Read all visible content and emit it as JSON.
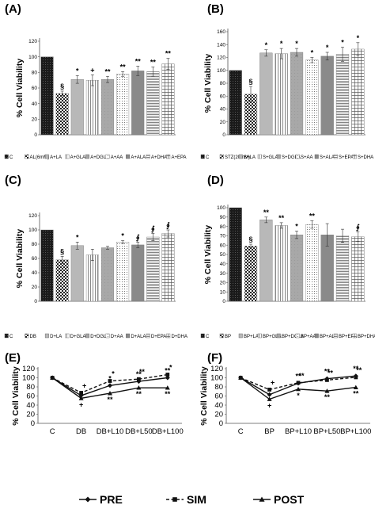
{
  "chart_data": [
    {
      "id": "A",
      "panel_label": "(A)",
      "type": "bar",
      "ylabel": "% Cell Viability",
      "ylim": [
        0,
        120
      ],
      "yticks": [
        0,
        20,
        40,
        60,
        80,
        100,
        120
      ],
      "categories": [
        "C",
        "AL(6mM)",
        "A+LA",
        "A+GLA",
        "A+DGLA",
        "A+AA",
        "A+ALA",
        "A+DHA",
        "A+EPA"
      ],
      "values": [
        100,
        53,
        71,
        70,
        71,
        78,
        82,
        81,
        91
      ],
      "errors": [
        0,
        3,
        5,
        7,
        4,
        3,
        6,
        6,
        7
      ],
      "sig": [
        "",
        "§",
        "*",
        "+",
        "**",
        "**",
        "**",
        "**",
        "**"
      ],
      "grid": false,
      "legend_position": "bottom"
    },
    {
      "id": "B",
      "panel_label": "(B)",
      "type": "bar",
      "ylabel": "% Cell Viability",
      "ylim": [
        0,
        160
      ],
      "yticks": [
        0,
        20,
        40,
        60,
        80,
        100,
        120,
        140,
        160
      ],
      "categories": [
        "C",
        "STZ(20mM)",
        "S+LA",
        "S+GLA",
        "S+DGLA",
        "S+AA",
        "S+ALA",
        "S+EPA",
        "S+DHA"
      ],
      "values": [
        100,
        63,
        127,
        126,
        128,
        116,
        122,
        125,
        133
      ],
      "errors": [
        0,
        12,
        5,
        8,
        6,
        4,
        6,
        11,
        10
      ],
      "sig": [
        "",
        "§",
        "*",
        "*",
        "*",
        "*",
        "*",
        "*",
        "*"
      ],
      "grid": false,
      "legend_position": "bottom"
    },
    {
      "id": "C",
      "panel_label": "(C)",
      "type": "bar",
      "ylabel": "% Cell Viability",
      "ylim": [
        0,
        120
      ],
      "yticks": [
        0,
        20,
        40,
        60,
        80,
        100,
        120
      ],
      "categories": [
        "C",
        "DB",
        "D+LA",
        "D+GLA",
        "D+DGLA",
        "D+AA",
        "D+ALA",
        "D+EPA",
        "D+DHA"
      ],
      "values": [
        100,
        58,
        78,
        65,
        75,
        83,
        79,
        90,
        95
      ],
      "errors": [
        0,
        5,
        5,
        8,
        2,
        2,
        4,
        5,
        5
      ],
      "sig": [
        "",
        "§",
        "*",
        "",
        "",
        "*",
        "∮",
        "∮",
        "∮"
      ],
      "grid": false,
      "legend_position": "bottom"
    },
    {
      "id": "D",
      "panel_label": "(D)",
      "type": "bar",
      "ylabel": "% Cell Viability",
      "ylim": [
        0,
        100
      ],
      "yticks": [
        0,
        10,
        20,
        30,
        40,
        50,
        60,
        70,
        80,
        90,
        100
      ],
      "categories": [
        "C",
        "BP",
        "BP+LA",
        "BP+GLA",
        "BP+DGLA",
        "BP+AA",
        "BP+ALA",
        "BP+EPA",
        "BP+DHA"
      ],
      "values": [
        100,
        59,
        87,
        81,
        71,
        82,
        71,
        70,
        69
      ],
      "errors": [
        0,
        2,
        3,
        3,
        4,
        4,
        12,
        7,
        5
      ],
      "sig": [
        "",
        "§",
        "**",
        "**",
        "*",
        "**",
        "",
        "",
        "∮"
      ],
      "grid": false,
      "legend_position": "bottom"
    },
    {
      "id": "E",
      "panel_label": "(E)",
      "type": "line",
      "ylabel": "% Cell Viability",
      "ylim": [
        0,
        120
      ],
      "yticks": [
        0,
        20,
        40,
        60,
        80,
        100,
        120
      ],
      "categories": [
        "C",
        "DB",
        "DB+L10",
        "DB+L50",
        "DB+L100"
      ],
      "series": [
        {
          "name": "PRE",
          "marker": "diamond",
          "dash": "solid",
          "values": [
            100,
            61,
            83,
            92,
            100
          ],
          "sig": [
            "",
            "",
            "*",
            "**",
            "**"
          ]
        },
        {
          "name": "SIM",
          "marker": "square",
          "dash": "dashed",
          "values": [
            100,
            67,
            93,
            97,
            107
          ],
          "sig": [
            "",
            "+",
            "*",
            "**",
            "*"
          ]
        },
        {
          "name": "POST",
          "marker": "triangle",
          "dash": "solid",
          "values": [
            100,
            55,
            66,
            78,
            78
          ],
          "sig": [
            "",
            "+",
            "**",
            "**",
            "**"
          ]
        }
      ],
      "grid": false,
      "legend_position": "bottom"
    },
    {
      "id": "F",
      "panel_label": "(F)",
      "type": "line",
      "ylabel": "% Cell Viability",
      "ylim": [
        0,
        120
      ],
      "yticks": [
        0,
        20,
        40,
        60,
        80,
        100,
        120
      ],
      "categories": [
        "C",
        "BP",
        "BP+L10",
        "BP+L50",
        "BP+L100"
      ],
      "series": [
        {
          "name": "PRE",
          "marker": "diamond",
          "dash": "solid",
          "values": [
            100,
            63,
            88,
            98,
            104
          ],
          "sig": [
            "",
            "",
            "**",
            "**",
            "**"
          ]
        },
        {
          "name": "SIM",
          "marker": "square",
          "dash": "dashed",
          "values": [
            100,
            74,
            89,
            95,
            101
          ],
          "sig": [
            "",
            "+",
            "**",
            "**",
            "**"
          ]
        },
        {
          "name": "POST",
          "marker": "triangle",
          "dash": "solid",
          "values": [
            100,
            53,
            75,
            71,
            79
          ],
          "sig": [
            "",
            "+",
            "*",
            "**",
            "**"
          ]
        }
      ],
      "grid": false,
      "legend_position": "bottom"
    }
  ],
  "legend": {
    "items": [
      {
        "label": "PRE",
        "marker": "diamond"
      },
      {
        "label": "SIM",
        "marker": "square"
      },
      {
        "label": "POST",
        "marker": "triangle"
      }
    ]
  }
}
